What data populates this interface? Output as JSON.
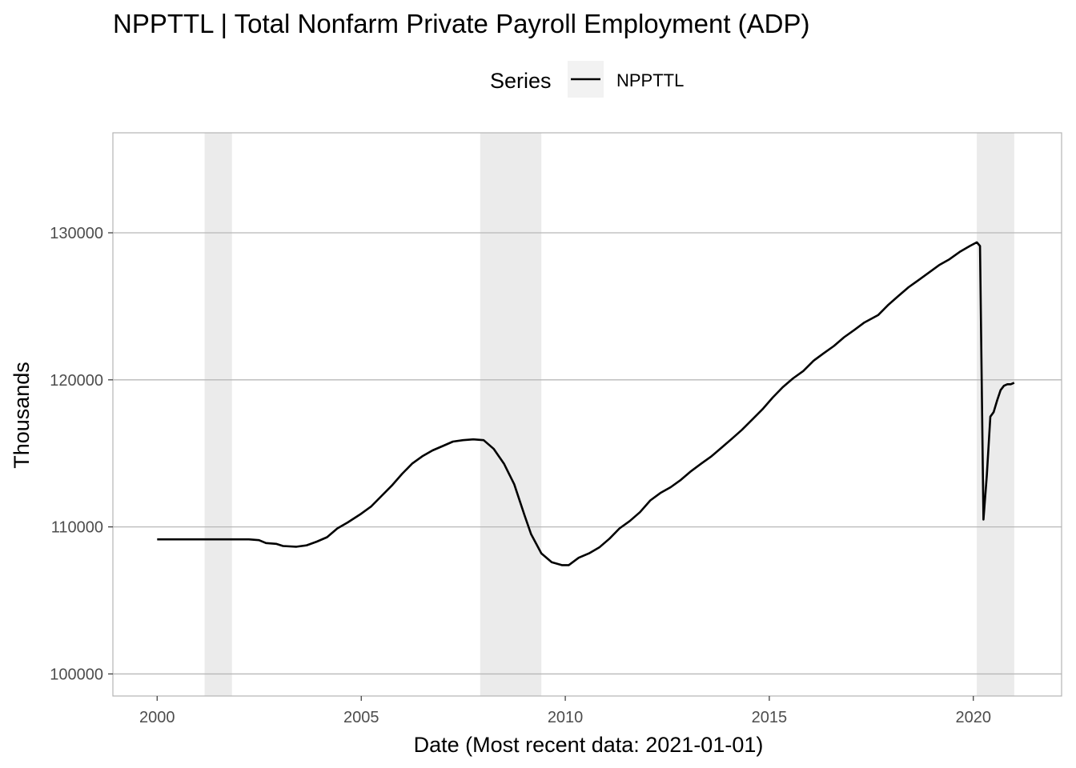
{
  "chart_data": {
    "type": "line",
    "title": "NPPTTL | Total Nonfarm Private Payroll Employment (ADP)",
    "xlabel": "Date (Most recent data: 2021-01-01)",
    "ylabel": "Thousands",
    "legend": {
      "title": "Series",
      "placement": "top",
      "entries": [
        "NPPTTL"
      ]
    },
    "grid": true,
    "xlim": [
      "1998-12-01",
      "2022-03-01"
    ],
    "ylim": [
      98500,
      136800
    ],
    "x_ticks": [
      "2000",
      "2005",
      "2010",
      "2015",
      "2020"
    ],
    "y_ticks": [
      100000,
      110000,
      120000,
      130000
    ],
    "recession_shading": [
      {
        "start": "2001-03-01",
        "end": "2001-11-01"
      },
      {
        "start": "2007-12-01",
        "end": "2009-06-01"
      },
      {
        "start": "2020-02-01",
        "end": "2021-01-01"
      }
    ],
    "series": [
      {
        "name": "NPPTTL",
        "color": "#000000",
        "points": [
          [
            "2000-01-01",
            109150
          ],
          [
            "2000-07-01",
            109150
          ],
          [
            "2001-01-01",
            109150
          ],
          [
            "2001-07-01",
            109150
          ],
          [
            "2002-01-01",
            109150
          ],
          [
            "2002-04-01",
            109150
          ],
          [
            "2002-07-01",
            109100
          ],
          [
            "2002-09-01",
            108900
          ],
          [
            "2002-12-01",
            108850
          ],
          [
            "2003-02-01",
            108700
          ],
          [
            "2003-06-01",
            108650
          ],
          [
            "2003-09-01",
            108750
          ],
          [
            "2003-12-01",
            109000
          ],
          [
            "2004-03-01",
            109300
          ],
          [
            "2004-06-01",
            109900
          ],
          [
            "2004-09-01",
            110300
          ],
          [
            "2005-01-01",
            110900
          ],
          [
            "2005-04-01",
            111400
          ],
          [
            "2005-07-01",
            112100
          ],
          [
            "2005-10-01",
            112800
          ],
          [
            "2006-01-01",
            113600
          ],
          [
            "2006-04-01",
            114300
          ],
          [
            "2006-07-01",
            114800
          ],
          [
            "2006-10-01",
            115200
          ],
          [
            "2007-01-01",
            115500
          ],
          [
            "2007-04-01",
            115800
          ],
          [
            "2007-07-01",
            115900
          ],
          [
            "2007-10-01",
            115950
          ],
          [
            "2008-01-01",
            115900
          ],
          [
            "2008-04-01",
            115300
          ],
          [
            "2008-07-01",
            114300
          ],
          [
            "2008-10-01",
            112900
          ],
          [
            "2009-01-01",
            110800
          ],
          [
            "2009-03-01",
            109500
          ],
          [
            "2009-06-01",
            108200
          ],
          [
            "2009-09-01",
            107600
          ],
          [
            "2009-12-01",
            107400
          ],
          [
            "2010-02-01",
            107400
          ],
          [
            "2010-05-01",
            107900
          ],
          [
            "2010-08-01",
            108200
          ],
          [
            "2010-11-01",
            108600
          ],
          [
            "2011-02-01",
            109200
          ],
          [
            "2011-05-01",
            109900
          ],
          [
            "2011-08-01",
            110400
          ],
          [
            "2011-11-01",
            111000
          ],
          [
            "2012-02-01",
            111800
          ],
          [
            "2012-05-01",
            112300
          ],
          [
            "2012-08-01",
            112700
          ],
          [
            "2012-11-01",
            113200
          ],
          [
            "2013-02-01",
            113800
          ],
          [
            "2013-05-01",
            114300
          ],
          [
            "2013-08-01",
            114800
          ],
          [
            "2013-11-01",
            115400
          ],
          [
            "2014-02-01",
            116000
          ],
          [
            "2014-05-01",
            116600
          ],
          [
            "2014-08-01",
            117300
          ],
          [
            "2014-11-01",
            118000
          ],
          [
            "2015-02-01",
            118800
          ],
          [
            "2015-05-01",
            119500
          ],
          [
            "2015-08-01",
            120100
          ],
          [
            "2015-11-01",
            120600
          ],
          [
            "2016-02-01",
            121300
          ],
          [
            "2016-05-01",
            121800
          ],
          [
            "2016-08-01",
            122300
          ],
          [
            "2016-11-01",
            122900
          ],
          [
            "2017-02-01",
            123400
          ],
          [
            "2017-05-01",
            123900
          ],
          [
            "2017-09-01",
            124400
          ],
          [
            "2017-12-01",
            125100
          ],
          [
            "2018-03-01",
            125700
          ],
          [
            "2018-06-01",
            126300
          ],
          [
            "2018-09-01",
            126800
          ],
          [
            "2018-12-01",
            127300
          ],
          [
            "2019-03-01",
            127800
          ],
          [
            "2019-06-01",
            128200
          ],
          [
            "2019-09-01",
            128700
          ],
          [
            "2019-12-01",
            129100
          ],
          [
            "2020-02-01",
            129350
          ],
          [
            "2020-03-01",
            129100
          ],
          [
            "2020-04-01",
            110500
          ],
          [
            "2020-05-01",
            113500
          ],
          [
            "2020-06-01",
            117500
          ],
          [
            "2020-07-01",
            117800
          ],
          [
            "2020-08-01",
            118600
          ],
          [
            "2020-09-01",
            119300
          ],
          [
            "2020-10-01",
            119600
          ],
          [
            "2020-11-01",
            119700
          ],
          [
            "2020-12-01",
            119700
          ],
          [
            "2021-01-01",
            119800
          ]
        ]
      }
    ]
  }
}
